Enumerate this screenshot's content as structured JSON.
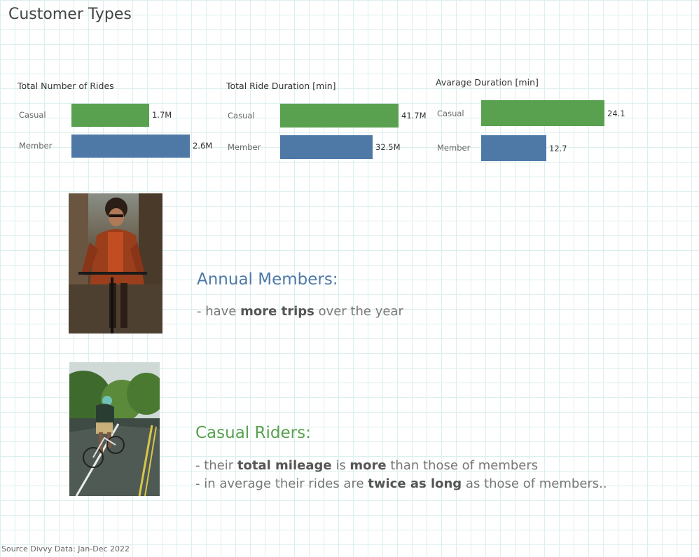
{
  "title": "Customer Types",
  "colors": {
    "casual": "#59a14f",
    "member": "#4e79a7"
  },
  "chart_data": [
    {
      "type": "bar",
      "title": "Total Number of Rides",
      "categories": [
        "Casual",
        "Member"
      ],
      "values": [
        1.7,
        2.6
      ],
      "labels": [
        "1.7M",
        "2.6M"
      ]
    },
    {
      "type": "bar",
      "title": "Total Ride Duration [min]",
      "categories": [
        "Casual",
        "Member"
      ],
      "values": [
        41.7,
        32.5
      ],
      "labels": [
        "41.7M",
        "32.5M"
      ]
    },
    {
      "type": "bar",
      "title": "Avarage Duration [min]",
      "categories": [
        "Casual",
        "Member"
      ],
      "values": [
        24.1,
        12.7
      ],
      "labels": [
        "24.1",
        "12.7"
      ]
    }
  ],
  "members": {
    "heading": "Annual Members:",
    "line1": {
      "a": "- have ",
      "b": "more trips",
      "c": " over the year"
    }
  },
  "casual": {
    "heading": "Casual Riders:",
    "line1": {
      "a": "- their ",
      "b": "total mileage",
      "c": " is ",
      "d": "more",
      "e": " than those of members"
    },
    "line2": {
      "a": "- in average their rides are ",
      "b": "twice as long",
      "c": " as those of members.."
    }
  },
  "source": "Source Divvy Data: Jan-Dec 2022"
}
